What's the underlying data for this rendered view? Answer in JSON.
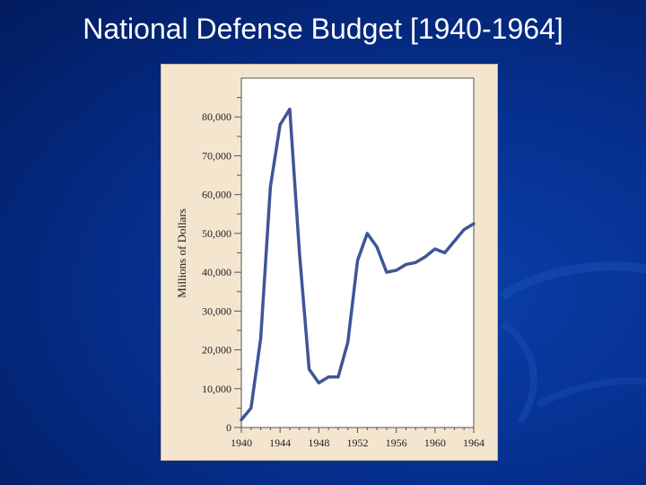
{
  "slide": {
    "title": "National Defense Budget [1940-1964]"
  },
  "colors": {
    "background": "#06308f",
    "chart_panel": "#f4e5cf",
    "plot_area": "#ffffff",
    "line": "#3f5599"
  },
  "chart_data": {
    "type": "line",
    "title": "",
    "xlabel": "",
    "ylabel": "Millions of Dollars",
    "xlim": [
      1940,
      1964
    ],
    "ylim": [
      0,
      90000
    ],
    "grid": false,
    "x_ticks": [
      "1940",
      "1944",
      "1948",
      "1952",
      "1956",
      "1960",
      "1964"
    ],
    "y_ticks": [
      "0",
      "10,000",
      "20,000",
      "30,000",
      "40,000",
      "50,000",
      "60,000",
      "70,000",
      "80,000"
    ],
    "series": [
      {
        "x": [
          1940,
          1941,
          1942,
          1943,
          1944,
          1945,
          1946,
          1947,
          1948,
          1949,
          1950,
          1951,
          1952,
          1953,
          1954,
          1955,
          1956,
          1957,
          1958,
          1959,
          1960,
          1961,
          1962,
          1963,
          1964
        ],
        "values": [
          2000,
          5000,
          23000,
          62000,
          78000,
          82000,
          45000,
          15000,
          11500,
          13000,
          13000,
          22000,
          43000,
          50000,
          46500,
          40000,
          40500,
          42000,
          42500,
          44000,
          46000,
          45000,
          48000,
          51000,
          52500
        ]
      }
    ]
  }
}
